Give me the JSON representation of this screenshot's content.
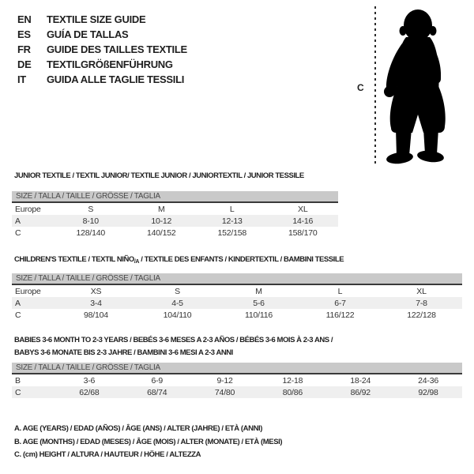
{
  "languages": [
    {
      "code": "EN",
      "title": "TEXTILE SIZE GUIDE"
    },
    {
      "code": "ES",
      "title": "GUÍA DE TALLAS"
    },
    {
      "code": "FR",
      "title": "GUIDE DES TAILLES TEXTILE"
    },
    {
      "code": "DE",
      "title": "TEXTILGRÖßENFÜHRUNG"
    },
    {
      "code": "IT",
      "title": "GUIDA ALLE TAGLIE TESSILI"
    }
  ],
  "figure": {
    "icon": "baby-silhouette",
    "measure_label": "C"
  },
  "junior": {
    "title": "JUNIOR TEXTILE / TEXTIL JUNIOR/ TEXTILE JUNIOR / JUNIORTEXTIL / JUNIOR TESSILE",
    "size_header": "SIZE / TALLA / TAILLE / GRÖSSE / TAGLIA",
    "rows": [
      {
        "label": "Europe",
        "values": [
          "S",
          "M",
          "L",
          "XL"
        ]
      },
      {
        "label": "A",
        "values": [
          "8-10",
          "10-12",
          "12-13",
          "14-16"
        ]
      },
      {
        "label": "C",
        "values": [
          "128/140",
          "140/152",
          "152/158",
          "158/170"
        ]
      }
    ]
  },
  "children": {
    "title_before_sub": "CHILDREN'S TEXTILE / TEXTIL NIÑO",
    "title_sub": "/A",
    "title_after_sub": " / TEXTILE DES ENFANTS / KINDERTEXTIL / BAMBINI TESSILE",
    "size_header": "SIZE / TALLA / TAILLE / GRÖSSE / TAGLIA",
    "rows": [
      {
        "label": "Europe",
        "values": [
          "XS",
          "S",
          "M",
          "L",
          "XL"
        ]
      },
      {
        "label": "A",
        "values": [
          "3-4",
          "4-5",
          "5-6",
          "6-7",
          "7-8"
        ]
      },
      {
        "label": "C",
        "values": [
          "98/104",
          "104/110",
          "110/116",
          "116/122",
          "122/128"
        ]
      }
    ]
  },
  "babies": {
    "title_line1": "BABIES 3-6 MONTH TO 2-3 YEARS / BEBÉS 3-6 MESES A 2-3 AÑOS / BÉBÉS 3-6 MOIS À 2-3 ANS /",
    "title_line2": "BABYS 3-6 MONATE BIS 2-3 JAHRE / BAMBINI 3-6 MESI A 2-3 ANNI",
    "size_header": "SIZE / TALLA / TAILLE / GRÖSSE / TAGLIA",
    "rows": [
      {
        "label": "B",
        "values": [
          "3-6",
          "6-9",
          "9-12",
          "12-18",
          "18-24",
          "24-36"
        ]
      },
      {
        "label": "C",
        "values": [
          "62/68",
          "68/74",
          "74/80",
          "80/86",
          "86/92",
          "92/98"
        ]
      }
    ]
  },
  "footnotes": [
    "A. AGE (YEARS) / EDAD (AÑOS) / ÂGE (ANS) / ALTER (JAHRE) / ETÀ (ANNI)",
    "B. AGE (MONTHS) / EDAD (MESES) / ÂGE (MOIS) / ALTER (MONATE) / ETÀ (MESI)",
    "C. (cm) HEIGHT / ALTURA / HAUTEUR / HÖHE / ALTEZZA"
  ],
  "colors": {
    "size_bar_bg": "#c9c9c9",
    "size_bar_text": "#4a4a4a",
    "size_bar_border": "#3a3a3a",
    "shaded_row_bg": "#efefef",
    "text": "#2d2d2d",
    "silhouette": "#000000"
  }
}
